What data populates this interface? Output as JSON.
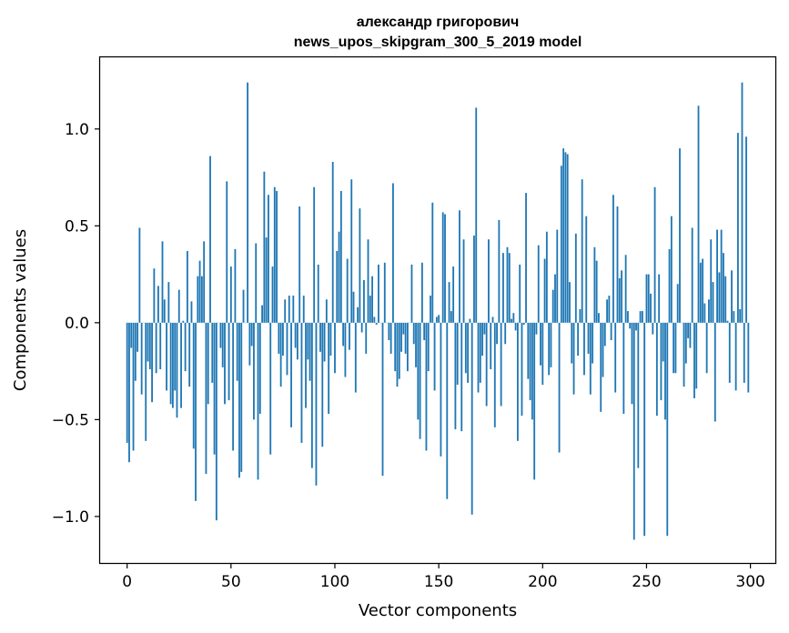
{
  "chart_data": {
    "type": "bar",
    "title": "александр григорович",
    "subtitle": "news_upos_skipgram_300_5_2019 model",
    "xlabel": "Vector components",
    "ylabel": "Components values",
    "xlim": [
      -13,
      312
    ],
    "ylim": [
      -1.24,
      1.37
    ],
    "xticks": [
      0,
      50,
      100,
      150,
      200,
      250,
      300
    ],
    "yticks": [
      1.0,
      0.5,
      0.0,
      -0.5,
      -1.0
    ],
    "ytick_labels": [
      "1.0",
      "0.5",
      "0.0",
      "−0.5",
      "−1.0"
    ],
    "grid": false,
    "bar_color": "#1f77b4",
    "values": [
      -0.62,
      -0.72,
      -0.13,
      -0.66,
      -0.3,
      -0.15,
      0.49,
      -0.37,
      0.0,
      -0.61,
      -0.2,
      -0.24,
      -0.41,
      0.28,
      -0.26,
      0.19,
      -0.24,
      0.42,
      0.12,
      -0.35,
      0.21,
      -0.42,
      -0.44,
      -0.35,
      -0.49,
      0.17,
      -0.44,
      0.01,
      -0.25,
      0.37,
      -0.33,
      0.11,
      -0.65,
      -0.92,
      0.24,
      0.32,
      0.24,
      0.42,
      -0.78,
      -0.42,
      0.86,
      -0.31,
      -0.68,
      -1.02,
      0.0,
      -0.13,
      -0.23,
      -0.42,
      0.73,
      -0.4,
      0.29,
      -0.66,
      0.38,
      -0.3,
      -0.8,
      -0.77,
      0.17,
      0.0,
      1.24,
      -0.22,
      -0.12,
      -0.5,
      0.41,
      -0.81,
      -0.47,
      0.09,
      0.78,
      0.44,
      0.66,
      -0.68,
      0.29,
      0.7,
      0.68,
      -0.16,
      -0.33,
      -0.17,
      0.12,
      -0.27,
      0.14,
      -0.54,
      0.14,
      -0.13,
      -0.19,
      0.6,
      -0.62,
      0.14,
      -0.44,
      -0.19,
      -0.3,
      -0.75,
      0.7,
      -0.84,
      0.3,
      -0.15,
      -0.64,
      -0.2,
      0.12,
      -0.47,
      -0.17,
      0.83,
      -0.26,
      0.37,
      0.47,
      0.68,
      -0.12,
      -0.28,
      0.33,
      -0.14,
      0.74,
      0.16,
      -0.36,
      0.08,
      0.59,
      -0.05,
      0.22,
      -0.16,
      0.43,
      0.14,
      0.24,
      0.03,
      -0.01,
      0.3,
      0.0,
      -0.79,
      0.31,
      0.0,
      -0.09,
      -0.16,
      0.72,
      -0.25,
      -0.33,
      -0.29,
      -0.15,
      -0.06,
      -0.16,
      -0.25,
      0.0,
      0.3,
      -0.11,
      -0.23,
      -0.5,
      -0.6,
      0.31,
      -0.09,
      -0.66,
      -0.25,
      0.14,
      0.62,
      -0.35,
      0.03,
      0.04,
      -0.69,
      0.57,
      0.56,
      -0.91,
      0.21,
      0.06,
      0.29,
      -0.55,
      -0.32,
      0.58,
      -0.56,
      0.43,
      -0.26,
      -0.31,
      0.02,
      -0.99,
      0.45,
      1.11,
      -0.36,
      -0.31,
      -0.17,
      -0.06,
      -0.43,
      0.43,
      -0.24,
      0.03,
      -0.54,
      -0.11,
      0.53,
      -0.43,
      0.36,
      -0.11,
      0.39,
      0.36,
      0.02,
      0.05,
      -0.04,
      -0.61,
      0.3,
      -0.48,
      -0.01,
      0.67,
      -0.29,
      -0.4,
      -0.5,
      -0.81,
      -0.06,
      0.4,
      -0.22,
      -0.32,
      0.33,
      0.47,
      -0.27,
      -0.23,
      0.17,
      0.25,
      0.48,
      -0.67,
      0.81,
      0.9,
      0.88,
      0.87,
      0.21,
      -0.21,
      -0.37,
      0.46,
      -0.17,
      0.07,
      0.74,
      -0.27,
      0.55,
      -0.16,
      -0.37,
      -0.21,
      0.39,
      0.32,
      0.05,
      -0.46,
      -0.28,
      -0.12,
      0.12,
      0.14,
      -0.09,
      0.66,
      -0.36,
      0.6,
      0.23,
      0.27,
      -0.47,
      0.35,
      0.06,
      -0.03,
      -0.42,
      -1.12,
      -0.04,
      -0.75,
      0.06,
      0.06,
      -1.1,
      0.25,
      0.25,
      0.15,
      -0.06,
      0.7,
      -0.48,
      0.25,
      -0.4,
      -0.2,
      -0.5,
      -1.1,
      0.38,
      0.55,
      -0.26,
      -0.26,
      0.2,
      0.9,
      0.0,
      -0.33,
      -0.21,
      -0.08,
      -0.13,
      0.49,
      -0.39,
      -0.34,
      1.12,
      0.31,
      0.33,
      0.1,
      -0.26,
      0.12,
      0.43,
      0.21,
      -0.51,
      0.48,
      0.26,
      0.48,
      0.36,
      0.24,
      0.01,
      -0.31,
      0.27,
      0.06,
      -0.35,
      0.98,
      0.07,
      1.24,
      -0.31,
      0.96,
      -0.36
    ]
  }
}
